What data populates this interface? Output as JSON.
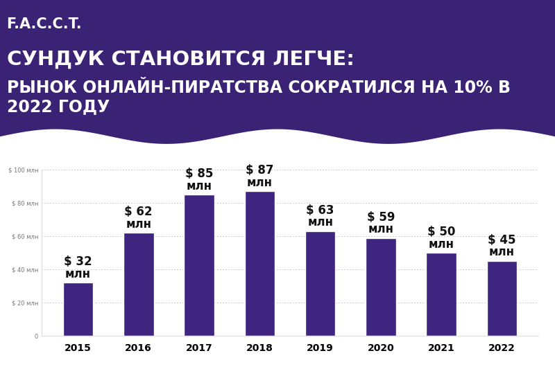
{
  "chart_data": {
    "type": "bar",
    "brand": "F.A.C.C.T.",
    "title": "СУНДУК СТАНОВИТСЯ ЛЕГЧЕ:",
    "subtitle": "РЫНОК ОНЛАЙН-ПИРАТСТВА СОКРАТИЛСЯ НА 10% В 2022 ГОДУ",
    "categories": [
      "2015",
      "2016",
      "2017",
      "2018",
      "2019",
      "2020",
      "2021",
      "2022"
    ],
    "values": [
      32,
      62,
      85,
      87,
      63,
      59,
      50,
      45
    ],
    "value_labels": [
      "$ 32\nмлн",
      "$ 62\nмлн",
      "$ 85\nмлн",
      "$ 87\nмлн",
      "$ 63\nмлн",
      "$ 59\nмлн",
      "$ 50\nмлн",
      "$ 45\nмлн"
    ],
    "data_labels": true,
    "color": "#3d2580",
    "ylim": [
      0,
      100
    ],
    "yticks": [
      0,
      {
        "value": 20,
        "label": "$ 20 млн"
      },
      {
        "value": 40,
        "label": "$ 40 млн"
      },
      {
        "value": 60,
        "label": "$ 60 млн"
      },
      {
        "value": 80,
        "label": "$ 80 млн"
      },
      {
        "value": 100,
        "label": "$ 100 млн"
      }
    ],
    "grid": true
  }
}
